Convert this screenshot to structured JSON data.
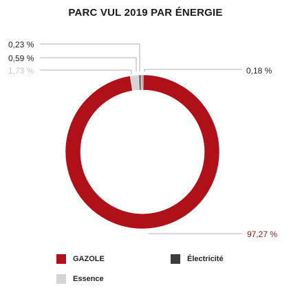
{
  "chart_data": {
    "type": "pie",
    "title": "PARC VUL 2019 PAR ÉNERGIE",
    "slices": [
      {
        "name": "GAZOLE",
        "value": 97.27,
        "label": "97,27 %",
        "color": "#b01118"
      },
      {
        "name": "",
        "value": 0.23,
        "label": "0,23 %",
        "color": "#8a8a8a"
      },
      {
        "name": "",
        "value": 0.59,
        "label": "0,59 %",
        "color": "#777777"
      },
      {
        "name": "Essence",
        "value": 1.73,
        "label": "1,73 %",
        "color": "#d4d4d4"
      },
      {
        "name": "Électricité",
        "value": 0.18,
        "label": "0,18 %",
        "color": "#3d3d3d"
      }
    ],
    "legend": [
      {
        "label": "GAZOLE",
        "color": "#b01118"
      },
      {
        "label": "Électricité",
        "color": "#3d3d3d"
      },
      {
        "label": "Essence",
        "color": "#d4d4d4"
      }
    ]
  }
}
